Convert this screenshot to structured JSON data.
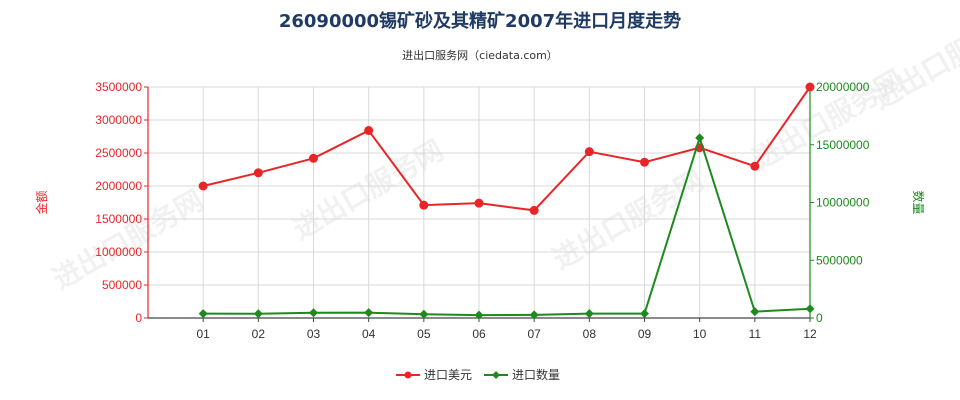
{
  "chart_data": {
    "type": "line",
    "title": "26090000锡矿砂及其精矿2007年进口月度走势",
    "subtitle": "进出口服务网（ciedata.com）",
    "categories": [
      "01",
      "02",
      "03",
      "04",
      "05",
      "06",
      "07",
      "08",
      "09",
      "10",
      "11",
      "12"
    ],
    "y_left": {
      "label": "金额",
      "ylim": [
        0,
        3500000
      ],
      "ticks": [
        0,
        500000,
        1000000,
        1500000,
        2000000,
        2500000,
        3000000,
        3500000
      ],
      "tick_labels": [
        "0",
        "500000",
        "1000000",
        "1500000",
        "2000000",
        "2500000",
        "3000000",
        "3500000"
      ],
      "color": "#e8262a"
    },
    "y_right": {
      "label": "数量",
      "ylim": [
        0,
        20000000
      ],
      "ticks": [
        0,
        5000000,
        10000000,
        15000000,
        20000000
      ],
      "tick_labels": [
        "0",
        "5000000",
        "10000000",
        "15000000",
        "20000000"
      ],
      "color": "#1e8a1e"
    },
    "series": [
      {
        "name": "进口美元",
        "axis": "left",
        "color": "#e8262a",
        "marker": "circle",
        "values": [
          2000000,
          2200000,
          2420000,
          2840000,
          1710000,
          1740000,
          1630000,
          2520000,
          2360000,
          2580000,
          2300000,
          3500000
        ]
      },
      {
        "name": "进口数量",
        "axis": "right",
        "color": "#1e8a1e",
        "marker": "diamond",
        "values": [
          380000,
          370000,
          450000,
          460000,
          320000,
          250000,
          270000,
          380000,
          380000,
          15600000,
          550000,
          800000
        ]
      }
    ],
    "grid": true,
    "legend_position": "bottom-center"
  },
  "watermark_text": "进出口服务网"
}
